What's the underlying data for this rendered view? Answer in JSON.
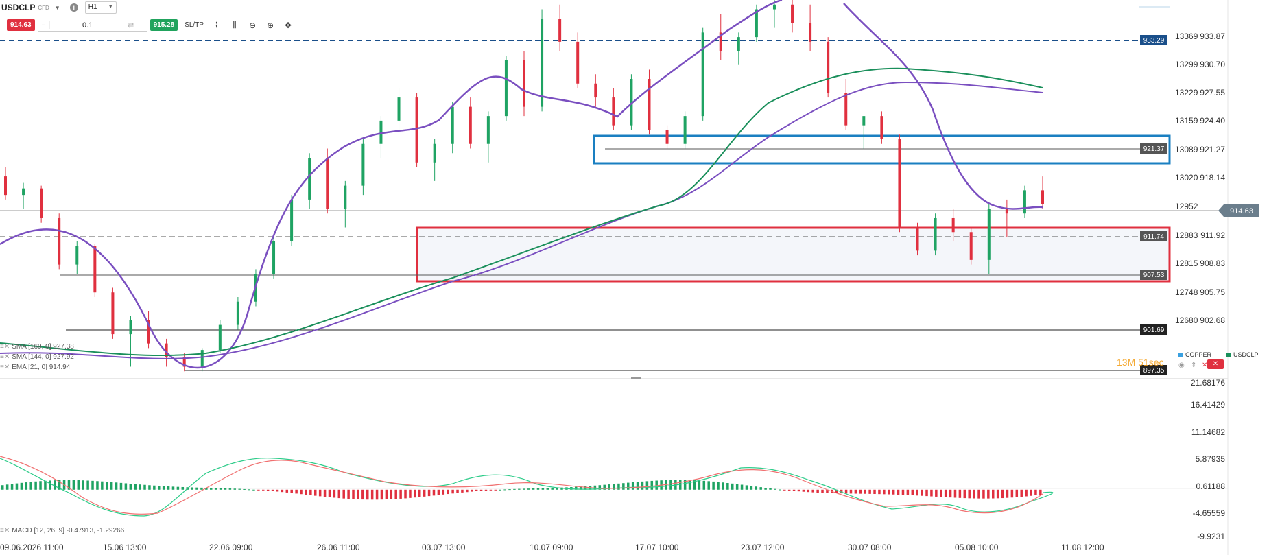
{
  "toolbar": {
    "symbol": "USDCLP",
    "instrument_type": "CFD",
    "timeframe": "H1",
    "sell_price": "914.63",
    "quantity": "0.1",
    "buy_price": "915.28",
    "sltp_label": "SL/TP",
    "minus_label": "−",
    "plus_label": "+"
  },
  "indicators": {
    "sma169": "SMA [169, 0] 927.38",
    "sma144": "SMA [144, 0] 927.92",
    "ema21": "EMA [21, 0] 914.94",
    "macd": "MACD [12, 26, 9] -0.47913, -1.29266"
  },
  "timer": "13M 51sec",
  "legend": {
    "copper": "COPPER",
    "usdclp": "USDCLP",
    "copper_color": "#3aa0e0",
    "usdclp_color": "#1a8f5b"
  },
  "chart_data": {
    "type": "candlestick",
    "symbol": "USDCLP",
    "timeframe": "H1",
    "x_tick_labels": [
      "09.06.2026 11:00",
      "15.06 13:00",
      "22.06 09:00",
      "26.06 11:00",
      "03.07 13:00",
      "10.07 09:00",
      "17.07 10:00",
      "23.07 12:00",
      "30.07 08:00",
      "05.08 10:00",
      "11.08 12:00"
    ],
    "y_axis_right": {
      "ticks": [
        "933.87",
        "930.70",
        "927.55",
        "924.40",
        "921.27",
        "918.14",
        "911.92",
        "908.83",
        "905.75",
        "902.68"
      ],
      "range": [
        896.0,
        936.5
      ]
    },
    "y_axis_secondary": {
      "ticks": [
        "13369",
        "13299",
        "13229",
        "13159",
        "13089",
        "13020",
        "12952",
        "12883",
        "12815",
        "12748",
        "12680"
      ]
    },
    "price_levels": [
      {
        "label": "933.29",
        "value": 933.29,
        "style": "dashed",
        "color": "#1a4f8a"
      },
      {
        "label": "921.37",
        "value": 921.37,
        "style": "solid",
        "color": "#555555"
      },
      {
        "label": "911.74",
        "value": 911.74,
        "style": "dashed",
        "color": "#555555"
      },
      {
        "label": "907.53",
        "value": 907.53,
        "style": "solid",
        "color": "#555555"
      },
      {
        "label": "901.69",
        "value": 901.69,
        "style": "solid",
        "color": "#222222"
      },
      {
        "label": "897.35",
        "value": 897.35,
        "style": "solid",
        "color": "#222222"
      }
    ],
    "current_price": {
      "label": "914.63",
      "value": 914.63
    },
    "zones": [
      {
        "name": "resistance",
        "top": 922.3,
        "bottom": 919.2,
        "color": "#1a7fc1",
        "start_label": "10.07 09:00"
      },
      {
        "name": "support",
        "top": 912.8,
        "bottom": 906.9,
        "color": "#e0303f",
        "start_label": "03.07 13:00"
      }
    ],
    "ohlc_samples": [
      {
        "o": 917.5,
        "h": 918.5,
        "l": 915.0,
        "c": 915.5
      },
      {
        "o": 915.5,
        "h": 916.8,
        "l": 914.0,
        "c": 916.2
      },
      {
        "o": 916.2,
        "h": 916.5,
        "l": 912.5,
        "c": 913.0
      },
      {
        "o": 913.0,
        "h": 913.5,
        "l": 907.5,
        "c": 908.0
      },
      {
        "o": 908.0,
        "h": 910.5,
        "l": 907.0,
        "c": 910.0
      },
      {
        "o": 910.0,
        "h": 910.2,
        "l": 904.5,
        "c": 905.0
      },
      {
        "o": 905.0,
        "h": 905.5,
        "l": 900.0,
        "c": 900.5
      },
      {
        "o": 900.5,
        "h": 902.5,
        "l": 897.0,
        "c": 902.0
      },
      {
        "o": 902.0,
        "h": 903.0,
        "l": 899.0,
        "c": 899.5
      },
      {
        "o": 899.5,
        "h": 900.0,
        "l": 897.0,
        "c": 898.0
      },
      {
        "o": 898.0,
        "h": 898.5,
        "l": 896.5,
        "c": 897.0
      },
      {
        "o": 897.0,
        "h": 899.0,
        "l": 896.5,
        "c": 898.8
      },
      {
        "o": 898.8,
        "h": 902.0,
        "l": 898.5,
        "c": 901.5
      },
      {
        "o": 901.5,
        "h": 904.5,
        "l": 901.0,
        "c": 904.0
      },
      {
        "o": 904.0,
        "h": 907.5,
        "l": 903.5,
        "c": 907.0
      },
      {
        "o": 907.0,
        "h": 911.0,
        "l": 906.5,
        "c": 910.5
      },
      {
        "o": 910.5,
        "h": 915.5,
        "l": 910.0,
        "c": 915.0
      },
      {
        "o": 915.0,
        "h": 920.0,
        "l": 914.0,
        "c": 919.5
      },
      {
        "o": 919.5,
        "h": 920.5,
        "l": 913.5,
        "c": 914.0
      },
      {
        "o": 914.0,
        "h": 917.0,
        "l": 912.0,
        "c": 916.5
      },
      {
        "o": 916.5,
        "h": 921.5,
        "l": 915.5,
        "c": 921.0
      },
      {
        "o": 921.0,
        "h": 924.0,
        "l": 919.5,
        "c": 923.5
      },
      {
        "o": 923.5,
        "h": 927.0,
        "l": 922.5,
        "c": 926.0
      },
      {
        "o": 926.0,
        "h": 926.5,
        "l": 918.5,
        "c": 919.0
      },
      {
        "o": 919.0,
        "h": 921.5,
        "l": 917.0,
        "c": 921.0
      },
      {
        "o": 921.0,
        "h": 925.5,
        "l": 920.0,
        "c": 925.0
      },
      {
        "o": 925.0,
        "h": 926.0,
        "l": 920.5,
        "c": 921.0
      },
      {
        "o": 921.0,
        "h": 924.5,
        "l": 919.0,
        "c": 924.0
      },
      {
        "o": 924.0,
        "h": 930.5,
        "l": 923.5,
        "c": 930.0
      },
      {
        "o": 930.0,
        "h": 931.0,
        "l": 924.0,
        "c": 925.0
      },
      {
        "o": 925.0,
        "h": 935.5,
        "l": 924.5,
        "c": 934.5
      },
      {
        "o": 934.5,
        "h": 936.0,
        "l": 931.0,
        "c": 932.0
      },
      {
        "o": 932.0,
        "h": 933.0,
        "l": 927.0,
        "c": 927.5
      },
      {
        "o": 927.5,
        "h": 928.5,
        "l": 925.0,
        "c": 926.0
      },
      {
        "o": 926.0,
        "h": 927.0,
        "l": 922.5,
        "c": 923.0
      },
      {
        "o": 923.0,
        "h": 928.5,
        "l": 922.5,
        "c": 928.0
      },
      {
        "o": 928.0,
        "h": 929.0,
        "l": 922.0,
        "c": 922.5
      },
      {
        "o": 922.5,
        "h": 923.0,
        "l": 920.5,
        "c": 921.0
      },
      {
        "o": 921.0,
        "h": 924.5,
        "l": 920.5,
        "c": 924.0
      },
      {
        "o": 924.0,
        "h": 933.5,
        "l": 923.5,
        "c": 933.0
      },
      {
        "o": 933.0,
        "h": 935.0,
        "l": 930.0,
        "c": 931.0
      },
      {
        "o": 931.0,
        "h": 933.0,
        "l": 929.5,
        "c": 932.5
      },
      {
        "o": 932.5,
        "h": 936.0,
        "l": 932.0,
        "c": 935.5
      },
      {
        "o": 935.5,
        "h": 937.0,
        "l": 933.5,
        "c": 936.0
      },
      {
        "o": 936.0,
        "h": 937.0,
        "l": 933.0,
        "c": 934.0
      },
      {
        "o": 934.0,
        "h": 936.0,
        "l": 931.0,
        "c": 932.0
      },
      {
        "o": 932.0,
        "h": 932.5,
        "l": 926.0,
        "c": 926.5
      },
      {
        "o": 926.5,
        "h": 928.0,
        "l": 922.5,
        "c": 923.0
      },
      {
        "o": 923.0,
        "h": 924.0,
        "l": 920.5,
        "c": 924.0
      },
      {
        "o": 924.0,
        "h": 924.5,
        "l": 921.0,
        "c": 921.5
      },
      {
        "o": 921.5,
        "h": 922.0,
        "l": 911.5,
        "c": 912.0
      },
      {
        "o": 912.0,
        "h": 912.5,
        "l": 909.0,
        "c": 909.5
      },
      {
        "o": 909.5,
        "h": 913.5,
        "l": 909.0,
        "c": 913.0
      },
      {
        "o": 913.0,
        "h": 914.0,
        "l": 910.5,
        "c": 911.5
      },
      {
        "o": 911.5,
        "h": 912.0,
        "l": 908.0,
        "c": 908.5
      },
      {
        "o": 908.5,
        "h": 914.5,
        "l": 907.0,
        "c": 914.0
      },
      {
        "o": 914.0,
        "h": 915.0,
        "l": 911.0,
        "c": 913.5
      },
      {
        "o": 913.5,
        "h": 916.5,
        "l": 913.0,
        "c": 916.0
      },
      {
        "o": 916.0,
        "h": 917.5,
        "l": 914.0,
        "c": 914.5
      }
    ],
    "moving_averages": [
      {
        "name": "SMA 169",
        "color": "#1a8f5b",
        "last": 927.38
      },
      {
        "name": "SMA 144",
        "color": "#7a4fc0",
        "last": 927.92
      },
      {
        "name": "EMA 21",
        "color": "#7a4fc0",
        "last": 914.94
      }
    ],
    "macd": {
      "params": "12, 26, 9",
      "macd": -0.47913,
      "signal": -1.29266,
      "y_ticks": [
        "21.68176",
        "16.41429",
        "11.14682",
        "5.87935",
        "0.61188",
        "-4.65559",
        "-9.9231"
      ],
      "range": [
        -9.9231,
        21.68176
      ]
    }
  }
}
